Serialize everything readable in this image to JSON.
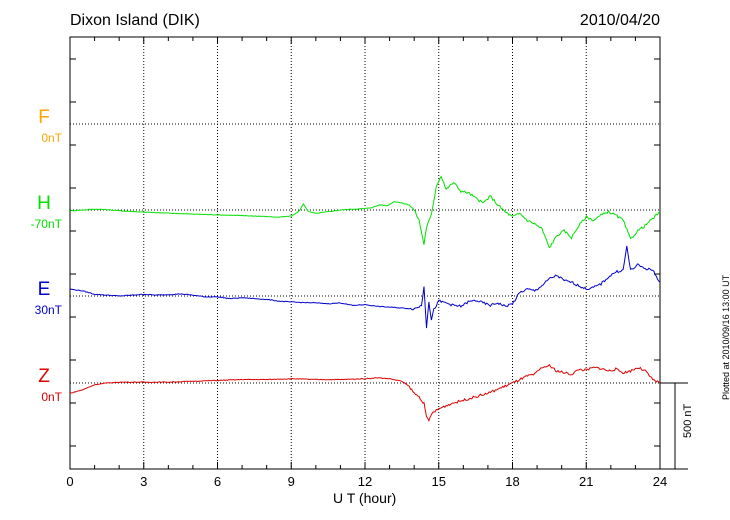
{
  "header": {
    "station": "Dixon Island (DIK)",
    "date": "2010/04/20"
  },
  "footer": {
    "plotted": "Plotted at 2010/09/16 13:00 UT"
  },
  "chart_data": {
    "type": "line",
    "xlabel": "U T (hour)",
    "xlim": [
      0,
      24
    ],
    "xticks": [
      "0",
      "3",
      "6",
      "9",
      "12",
      "15",
      "18",
      "21",
      "24"
    ],
    "scale_bar": "500 nT",
    "grid": true,
    "series": [
      {
        "name": "F",
        "base_label": "0nT",
        "color": "#ffa500",
        "points": []
      },
      {
        "name": "H",
        "base_label": "-70nT",
        "color": "#00e000",
        "points": [
          [
            0,
            -5
          ],
          [
            0.5,
            0
          ],
          [
            1,
            5
          ],
          [
            1.5,
            2
          ],
          [
            2,
            -4
          ],
          [
            2.5,
            -8
          ],
          [
            3,
            -12
          ],
          [
            3.5,
            -16
          ],
          [
            4,
            -18
          ],
          [
            4.5,
            -21
          ],
          [
            5,
            -24
          ],
          [
            5.5,
            -26
          ],
          [
            6,
            -28
          ],
          [
            6.5,
            -30
          ],
          [
            7,
            -33
          ],
          [
            7.5,
            -35
          ],
          [
            8,
            -38
          ],
          [
            8.5,
            -42
          ],
          [
            9,
            -35
          ],
          [
            9.3,
            -10
          ],
          [
            9.5,
            35
          ],
          [
            9.7,
            -10
          ],
          [
            10,
            -20
          ],
          [
            10.5,
            -10
          ],
          [
            11,
            0
          ],
          [
            11.5,
            5
          ],
          [
            12,
            8
          ],
          [
            12.3,
            15
          ],
          [
            12.6,
            30
          ],
          [
            12.9,
            25
          ],
          [
            13.2,
            50
          ],
          [
            13.5,
            40
          ],
          [
            13.8,
            30
          ],
          [
            14,
            0
          ],
          [
            14.2,
            -60
          ],
          [
            14.4,
            -200
          ],
          [
            14.5,
            -100
          ],
          [
            14.7,
            -30
          ],
          [
            14.9,
            140
          ],
          [
            15.1,
            200
          ],
          [
            15.3,
            120
          ],
          [
            15.6,
            160
          ],
          [
            15.9,
            110
          ],
          [
            16.2,
            100
          ],
          [
            16.5,
            70
          ],
          [
            16.8,
            40
          ],
          [
            17.1,
            80
          ],
          [
            17.4,
            30
          ],
          [
            17.7,
            -10
          ],
          [
            18,
            -40
          ],
          [
            18.3,
            -20
          ],
          [
            18.6,
            -60
          ],
          [
            18.9,
            -80
          ],
          [
            19.2,
            -110
          ],
          [
            19.5,
            -220
          ],
          [
            19.8,
            -150
          ],
          [
            20.1,
            -120
          ],
          [
            20.4,
            -160
          ],
          [
            20.7,
            -90
          ],
          [
            21,
            -40
          ],
          [
            21.3,
            -60
          ],
          [
            21.6,
            -30
          ],
          [
            21.9,
            -10
          ],
          [
            22.2,
            -30
          ],
          [
            22.5,
            -60
          ],
          [
            22.8,
            -170
          ],
          [
            23.1,
            -120
          ],
          [
            23.4,
            -90
          ],
          [
            23.7,
            -50
          ],
          [
            24,
            -10
          ]
        ]
      },
      {
        "name": "E",
        "base_label": "30nT",
        "color": "#0000cc",
        "points": [
          [
            0,
            40
          ],
          [
            0.5,
            30
          ],
          [
            1,
            10
          ],
          [
            1.5,
            5
          ],
          [
            2,
            0
          ],
          [
            2.5,
            5
          ],
          [
            3,
            10
          ],
          [
            3.5,
            5
          ],
          [
            4,
            8
          ],
          [
            4.5,
            12
          ],
          [
            5,
            5
          ],
          [
            5.5,
            -5
          ],
          [
            6,
            -5
          ],
          [
            6.5,
            -15
          ],
          [
            7,
            -10
          ],
          [
            7.5,
            -15
          ],
          [
            8,
            -20
          ],
          [
            8.5,
            -30
          ],
          [
            9,
            -35
          ],
          [
            9.5,
            -38
          ],
          [
            10,
            -40
          ],
          [
            10.5,
            -45
          ],
          [
            11,
            -40
          ],
          [
            11.5,
            -55
          ],
          [
            12,
            -50
          ],
          [
            12.5,
            -60
          ],
          [
            13,
            -65
          ],
          [
            13.5,
            -70
          ],
          [
            14,
            -75
          ],
          [
            14.3,
            -55
          ],
          [
            14.4,
            60
          ],
          [
            14.5,
            -180
          ],
          [
            14.6,
            -30
          ],
          [
            14.7,
            -140
          ],
          [
            14.8,
            -80
          ],
          [
            15,
            -30
          ],
          [
            15.3,
            -40
          ],
          [
            15.6,
            -55
          ],
          [
            15.9,
            -60
          ],
          [
            16.2,
            -35
          ],
          [
            16.5,
            -25
          ],
          [
            16.8,
            -40
          ],
          [
            17.1,
            -55
          ],
          [
            17.4,
            -40
          ],
          [
            17.7,
            -60
          ],
          [
            18,
            -45
          ],
          [
            18.3,
            20
          ],
          [
            18.6,
            40
          ],
          [
            18.9,
            30
          ],
          [
            19.2,
            60
          ],
          [
            19.5,
            100
          ],
          [
            19.8,
            120
          ],
          [
            20.1,
            90
          ],
          [
            20.4,
            80
          ],
          [
            20.7,
            60
          ],
          [
            21,
            40
          ],
          [
            21.3,
            50
          ],
          [
            21.6,
            70
          ],
          [
            21.9,
            110
          ],
          [
            22.2,
            140
          ],
          [
            22.5,
            150
          ],
          [
            22.65,
            290
          ],
          [
            22.8,
            150
          ],
          [
            23.1,
            180
          ],
          [
            23.4,
            160
          ],
          [
            23.7,
            150
          ],
          [
            24,
            80
          ]
        ]
      },
      {
        "name": "Z",
        "base_label": "0nT",
        "color": "#dd0000",
        "points": [
          [
            0,
            -60
          ],
          [
            0.5,
            -40
          ],
          [
            1,
            -10
          ],
          [
            1.5,
            0
          ],
          [
            2,
            5
          ],
          [
            3,
            5
          ],
          [
            4,
            5
          ],
          [
            5,
            10
          ],
          [
            6,
            15
          ],
          [
            7,
            20
          ],
          [
            8,
            20
          ],
          [
            9,
            25
          ],
          [
            10,
            20
          ],
          [
            11,
            20
          ],
          [
            12,
            25
          ],
          [
            12.5,
            30
          ],
          [
            13,
            25
          ],
          [
            13.5,
            10
          ],
          [
            13.8,
            -20
          ],
          [
            14,
            -60
          ],
          [
            14.2,
            -80
          ],
          [
            14.4,
            -120
          ],
          [
            14.5,
            -200
          ],
          [
            14.6,
            -220
          ],
          [
            14.7,
            -180
          ],
          [
            15,
            -150
          ],
          [
            15.5,
            -120
          ],
          [
            16,
            -100
          ],
          [
            16.5,
            -80
          ],
          [
            17,
            -60
          ],
          [
            17.5,
            -30
          ],
          [
            18,
            0
          ],
          [
            18.3,
            20
          ],
          [
            18.6,
            40
          ],
          [
            18.9,
            50
          ],
          [
            19.2,
            90
          ],
          [
            19.5,
            100
          ],
          [
            19.8,
            70
          ],
          [
            20.1,
            60
          ],
          [
            20.4,
            50
          ],
          [
            20.7,
            80
          ],
          [
            21,
            75
          ],
          [
            21.3,
            90
          ],
          [
            21.6,
            85
          ],
          [
            21.9,
            70
          ],
          [
            22.2,
            80
          ],
          [
            22.5,
            60
          ],
          [
            22.8,
            70
          ],
          [
            23.1,
            90
          ],
          [
            23.4,
            70
          ],
          [
            23.7,
            20
          ],
          [
            24,
            0
          ]
        ]
      }
    ]
  }
}
